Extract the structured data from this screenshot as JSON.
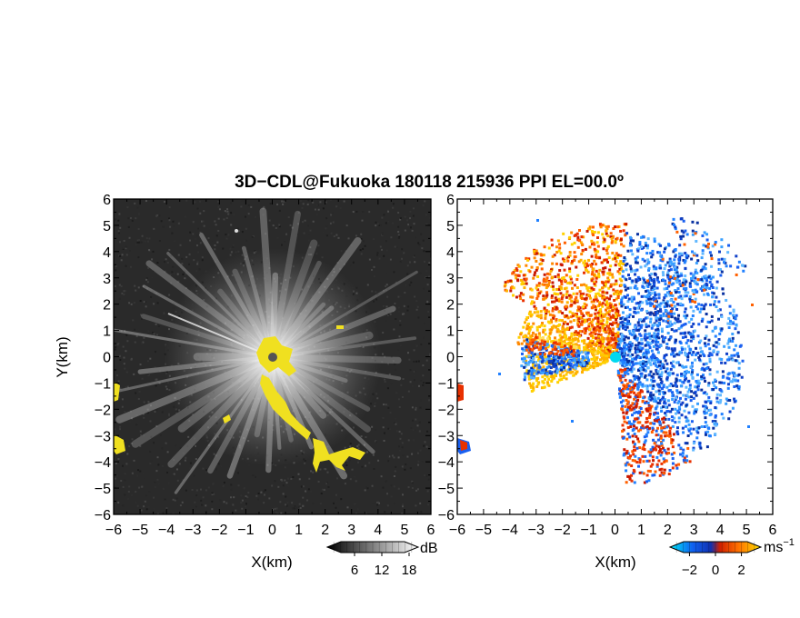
{
  "figure": {
    "title": "3D−CDL@Fukuoka 180118 215936 PPI EL=00.0º",
    "colors": {
      "background_left": "#2a2a2a",
      "echo_yellow": "#f0e020",
      "velocity_center": "#00d8f0"
    }
  },
  "chart_data": [
    {
      "type": "heatmap",
      "name": "reflectivity",
      "title": "",
      "xlabel": "X(km)",
      "ylabel": "Y(km)",
      "xlim": [
        -6,
        6
      ],
      "ylim": [
        -6,
        6
      ],
      "x_ticks": [
        "−6",
        "−5",
        "−4",
        "−3",
        "−2",
        "−1",
        "0",
        "1",
        "2",
        "3",
        "4",
        "5",
        "6"
      ],
      "y_ticks": [
        "6",
        "5",
        "4",
        "3",
        "2",
        "1",
        "0",
        "−1",
        "−2",
        "−3",
        "−4",
        "−5",
        "−6"
      ],
      "colorbar": {
        "unit": "dB",
        "ticks": [
          "6",
          "12",
          "18"
        ],
        "tick_values": [
          6,
          12,
          18
        ],
        "range": [
          0,
          20
        ],
        "colormap": "grayscale"
      },
      "grid": false
    },
    {
      "type": "heatmap",
      "name": "doppler_velocity",
      "title": "",
      "xlabel": "X(km)",
      "ylabel": "",
      "xlim": [
        -6,
        6
      ],
      "ylim": [
        -6,
        6
      ],
      "x_ticks": [
        "−6",
        "−5",
        "−4",
        "−3",
        "−2",
        "−1",
        "0",
        "1",
        "2",
        "3",
        "4",
        "5",
        "6"
      ],
      "y_ticks": [
        "6",
        "5",
        "4",
        "3",
        "2",
        "1",
        "0",
        "−1",
        "−2",
        "−3",
        "−4",
        "−5",
        "−6"
      ],
      "colorbar": {
        "unit": "ms",
        "unit_exponent": "−1",
        "ticks": [
          "−2",
          "0",
          "2"
        ],
        "tick_values": [
          -2,
          0,
          2
        ],
        "range": [
          -3.5,
          3.5
        ],
        "colormap": "blue-orange"
      },
      "grid": false
    }
  ]
}
